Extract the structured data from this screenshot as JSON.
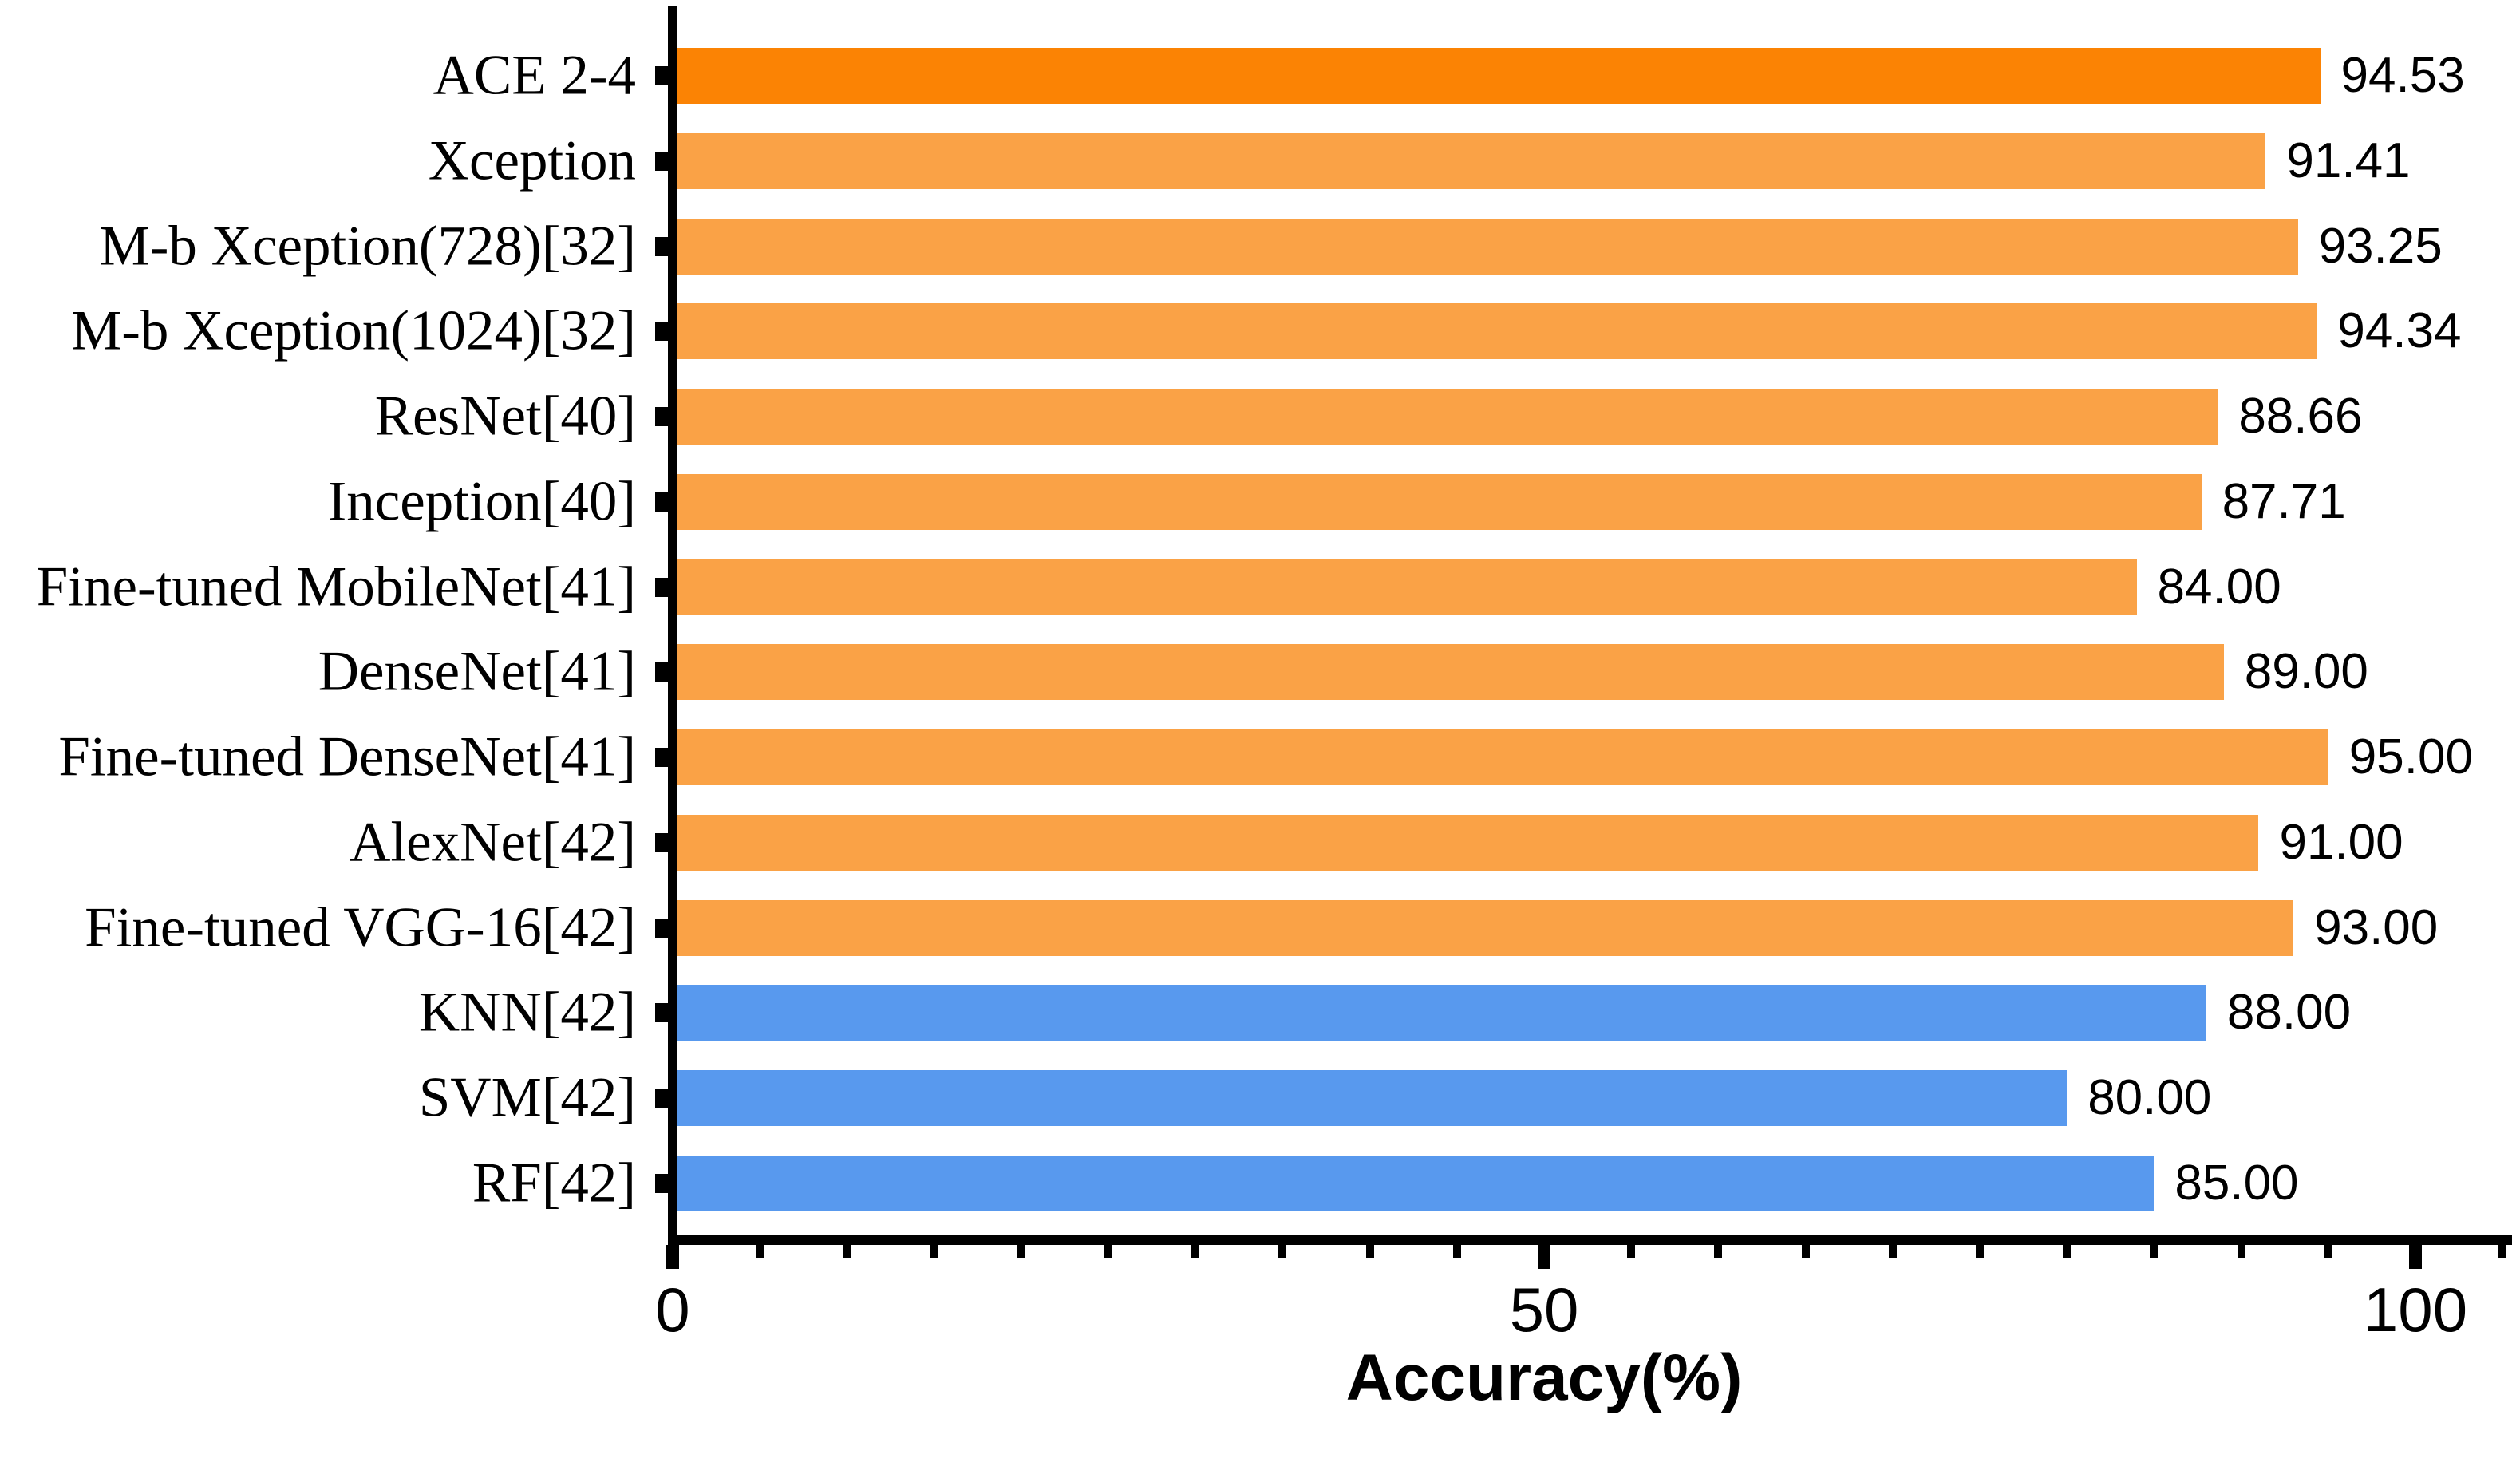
{
  "chart_data": {
    "type": "bar",
    "orientation": "horizontal",
    "title": "",
    "xlabel": "Accuracy(%)",
    "ylabel": "",
    "categories": [
      "ACE 2-4",
      "Xception",
      "M-b Xception(728)[32]",
      "M-b Xception(1024)[32]",
      "ResNet[40]",
      "Inception[40]",
      "Fine-tuned MobileNet[41]",
      "DenseNet[41]",
      "Fine-tuned DenseNet[41]",
      "AlexNet[42]",
      "Fine-tuned VGG-16[42]",
      "KNN[42]",
      "SVM[42]",
      "RF[42]"
    ],
    "values": [
      94.53,
      91.41,
      93.25,
      94.34,
      88.66,
      87.71,
      84.0,
      89.0,
      95.0,
      91.0,
      93.0,
      88.0,
      80.0,
      85.0
    ],
    "value_labels": [
      "94.53",
      "91.41",
      "93.25",
      "94.34",
      "88.66",
      "87.71",
      "84.00",
      "89.00",
      "95.00",
      "91.00",
      "93.00",
      "88.00",
      "80.00",
      "85.00"
    ],
    "bar_colors": [
      "#FB8304",
      "#FAA246",
      "#FAA246",
      "#FAA246",
      "#FAA246",
      "#FAA246",
      "#FAA246",
      "#FAA246",
      "#FAA246",
      "#FAA246",
      "#FAA246",
      "#5899EE",
      "#5899EE",
      "#5899EE"
    ],
    "x_ticks": [
      {
        "value": 0,
        "label": "0"
      },
      {
        "value": 50,
        "label": "50"
      },
      {
        "value": 100,
        "label": "100"
      }
    ],
    "minor_tick_step": 5,
    "xlim": [
      0,
      105
    ],
    "grid": false,
    "legend": "none",
    "colors": {
      "highlight_orange": "#FB8304",
      "orange": "#FAA246",
      "blue": "#5899EE",
      "axis": "#000000",
      "background": "#FFFFFF"
    }
  }
}
